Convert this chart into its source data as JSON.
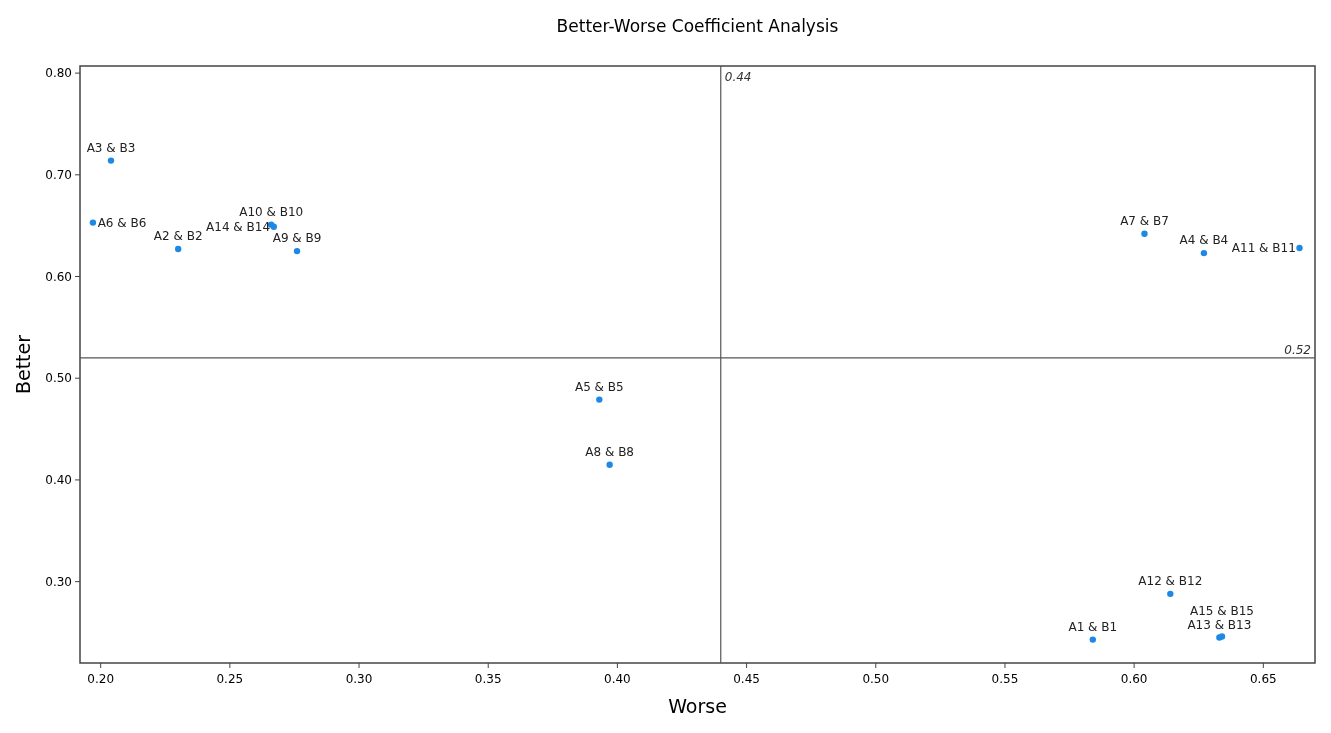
{
  "chart_data": {
    "type": "scatter",
    "title": "Better-Worse Coefficient Analysis",
    "xlabel": "Worse",
    "ylabel": "Better",
    "x": [
      0.584,
      0.23,
      0.204,
      0.627,
      0.393,
      0.197,
      0.604,
      0.397,
      0.276,
      0.266,
      0.664,
      0.614,
      0.633,
      0.267,
      0.634
    ],
    "series": [
      {
        "color": "#1e88e5",
        "values": [
          0.243,
          0.627,
          0.714,
          0.623,
          0.479,
          0.653,
          0.642,
          0.415,
          0.625,
          0.651,
          0.628,
          0.288,
          0.245,
          0.649,
          0.246
        ]
      }
    ],
    "annotations": [
      {
        "text": "A1 & B1",
        "x": 0.584,
        "y": 0.243
      },
      {
        "text": "A2 & B2",
        "x": 0.23,
        "y": 0.627
      },
      {
        "text": "A3 & B3",
        "x": 0.204,
        "y": 0.714
      },
      {
        "text": "A4 & B4",
        "x": 0.627,
        "y": 0.623
      },
      {
        "text": "A5 & B5",
        "x": 0.393,
        "y": 0.479
      },
      {
        "text": "A6 & B6",
        "x": 0.197,
        "y": 0.653
      },
      {
        "text": "A7 & B7",
        "x": 0.604,
        "y": 0.642
      },
      {
        "text": "A8 & B8",
        "x": 0.397,
        "y": 0.415
      },
      {
        "text": "A9 & B9",
        "x": 0.276,
        "y": 0.625
      },
      {
        "text": "A10 & B10",
        "x": 0.266,
        "y": 0.651
      },
      {
        "text": "A11 & B11",
        "x": 0.664,
        "y": 0.628
      },
      {
        "text": "A12 & B12",
        "x": 0.614,
        "y": 0.288
      },
      {
        "text": "A13 & B13",
        "x": 0.633,
        "y": 0.245
      },
      {
        "text": "A14 & B14",
        "x": 0.267,
        "y": 0.649
      },
      {
        "text": "A15 & B15",
        "x": 0.634,
        "y": 0.246
      }
    ],
    "ref_lines": [
      {
        "axis": "x",
        "value": 0.44,
        "label": "0.44",
        "color": "#555555"
      },
      {
        "axis": "y",
        "value": 0.52,
        "label": "0.52",
        "color": "#555555"
      }
    ],
    "xlim": [
      0.192,
      0.67
    ],
    "ylim": [
      0.22,
      0.807
    ],
    "xticks": [
      {
        "value": 0.2,
        "label": "0.20"
      },
      {
        "value": 0.25,
        "label": "0.25"
      },
      {
        "value": 0.3,
        "label": "0.30"
      },
      {
        "value": 0.35,
        "label": "0.35"
      },
      {
        "value": 0.4,
        "label": "0.40"
      },
      {
        "value": 0.45,
        "label": "0.45"
      },
      {
        "value": 0.5,
        "label": "0.50"
      },
      {
        "value": 0.55,
        "label": "0.55"
      },
      {
        "value": 0.6,
        "label": "0.60"
      },
      {
        "value": 0.65,
        "label": "0.65"
      }
    ],
    "yticks": [
      {
        "value": 0.3,
        "label": "0.30"
      },
      {
        "value": 0.4,
        "label": "0.40"
      },
      {
        "value": 0.5,
        "label": "0.50"
      },
      {
        "value": 0.6,
        "label": "0.60"
      },
      {
        "value": 0.7,
        "label": "0.70"
      },
      {
        "value": 0.8,
        "label": "0.80"
      }
    ],
    "grid": false,
    "marker": "circle"
  }
}
